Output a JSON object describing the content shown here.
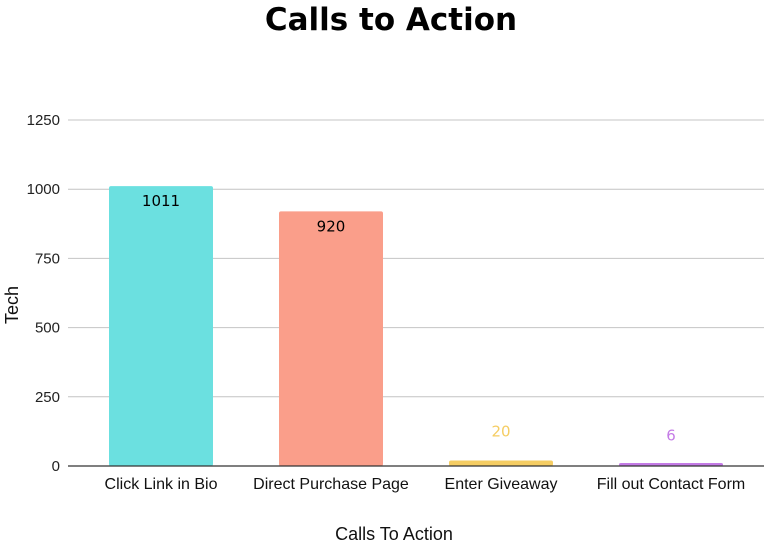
{
  "chart_data": {
    "type": "bar",
    "title": "Calls to Action",
    "xlabel": "Calls To Action",
    "ylabel": "Tech",
    "categories": [
      "Click Link in Bio",
      "Direct Purchase Page",
      "Enter Giveaway",
      "Fill out Contact Form"
    ],
    "values": [
      1011,
      920,
      20,
      6
    ],
    "data_labels": [
      "1011",
      "920",
      "20",
      "6"
    ],
    "colors": [
      "#6be0e0",
      "#fa9e8a",
      "#f5cd63",
      "#c47be6"
    ],
    "label_colors": [
      "#000000",
      "#000000",
      "#f5cd63",
      "#c47be6"
    ],
    "ylim": [
      0,
      1250
    ],
    "yticks": [
      0,
      250,
      500,
      750,
      1000,
      1250
    ],
    "grid": true,
    "legend": "none"
  }
}
